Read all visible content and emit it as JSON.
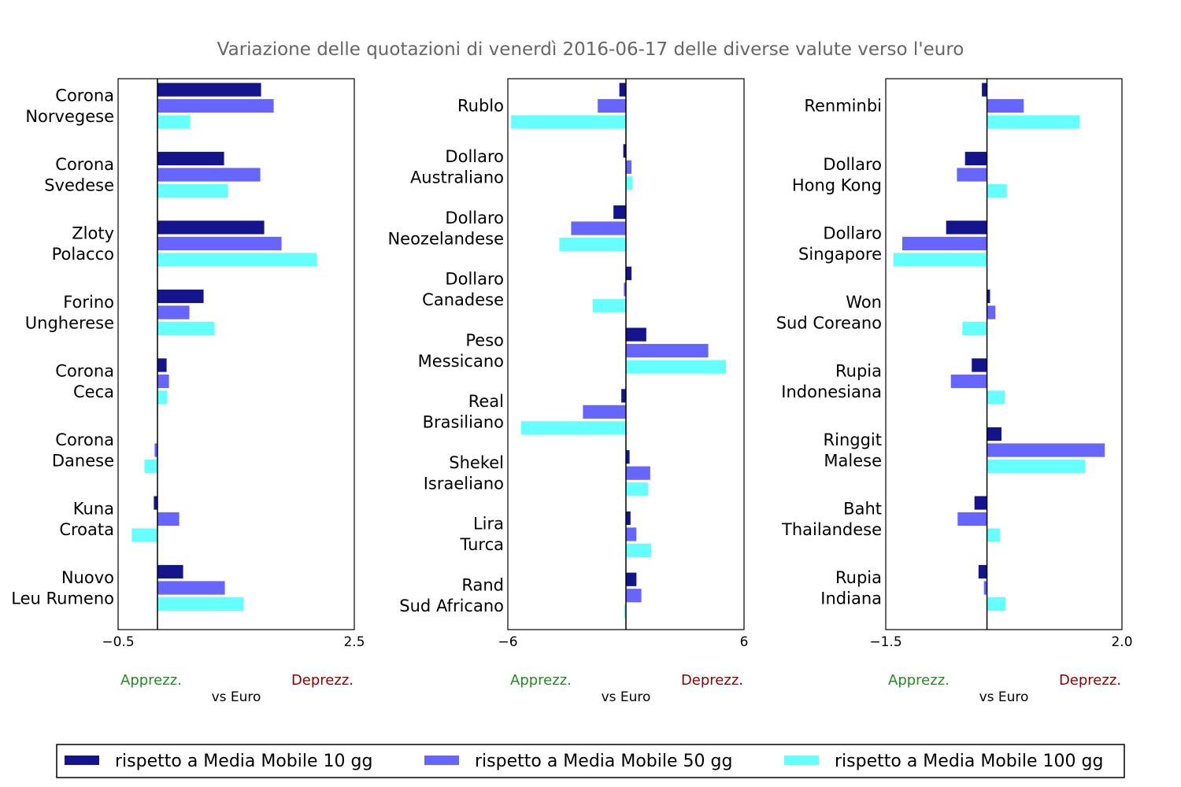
{
  "chart_data": {
    "type": "bar",
    "orientation": "horizontal",
    "title": "Variazione delle quotazioni di venerdì 2016-06-17 delle diverse valute verso l'euro",
    "xlabel": "vs Euro",
    "apprezz_label": "Apprezz.",
    "deprezz_label": "Deprezz.",
    "series": [
      {
        "name": "rispetto a Media Mobile 10 gg",
        "color": "#14148c"
      },
      {
        "name": "rispetto a Media Mobile 50 gg",
        "color": "#6666ff"
      },
      {
        "name": "rispetto a Media Mobile 100 gg",
        "color": "#66ffff"
      }
    ],
    "legend_position": "bottom",
    "panels": [
      {
        "xlim": [
          -0.5,
          2.5
        ],
        "xtick_labels": [
          "−0.5",
          "2.5"
        ],
        "categories": [
          {
            "lines": [
              "Corona",
              "Norvegese"
            ],
            "values": [
              1.32,
              1.48,
              0.42
            ]
          },
          {
            "lines": [
              "Corona",
              "Svedese"
            ],
            "values": [
              0.85,
              1.31,
              0.9
            ]
          },
          {
            "lines": [
              "Zloty",
              "Polacco"
            ],
            "values": [
              1.36,
              1.58,
              2.03
            ]
          },
          {
            "lines": [
              "Forino",
              "Ungherese"
            ],
            "values": [
              0.59,
              0.41,
              0.73
            ]
          },
          {
            "lines": [
              "Corona",
              "Ceca"
            ],
            "values": [
              0.12,
              0.15,
              0.13
            ]
          },
          {
            "lines": [
              "Corona",
              "Danese"
            ],
            "values": [
              0.0,
              -0.04,
              -0.17
            ]
          },
          {
            "lines": [
              "Kuna",
              "Croata"
            ],
            "values": [
              -0.05,
              0.28,
              -0.33
            ]
          },
          {
            "lines": [
              "Nuovo",
              "Leu Rumeno"
            ],
            "values": [
              0.33,
              0.86,
              1.1
            ]
          }
        ]
      },
      {
        "xlim": [
          -6,
          6
        ],
        "xtick_labels": [
          "−6",
          "6"
        ],
        "categories": [
          {
            "lines": [
              "Rublo"
            ],
            "values": [
              -0.35,
              -1.45,
              -5.85
            ]
          },
          {
            "lines": [
              "Dollaro",
              "Australiano"
            ],
            "values": [
              -0.15,
              0.3,
              0.35
            ]
          },
          {
            "lines": [
              "Dollaro",
              "Neozelandese"
            ],
            "values": [
              -0.65,
              -2.8,
              -3.4
            ]
          },
          {
            "lines": [
              "Dollaro",
              "Canadese"
            ],
            "values": [
              0.3,
              -0.12,
              -1.7
            ]
          },
          {
            "lines": [
              "Peso",
              "Messicano"
            ],
            "values": [
              1.05,
              4.2,
              5.1
            ]
          },
          {
            "lines": [
              "Real",
              "Brasiliano"
            ],
            "values": [
              -0.25,
              -2.2,
              -5.35
            ]
          },
          {
            "lines": [
              "Shekel",
              "Israeliano"
            ],
            "values": [
              0.2,
              1.25,
              1.15
            ]
          },
          {
            "lines": [
              "Lira",
              "Turca"
            ],
            "values": [
              0.25,
              0.55,
              1.3
            ]
          },
          {
            "lines": [
              "Rand",
              "Sud Africano"
            ],
            "values": [
              0.55,
              0.8,
              -0.1
            ]
          }
        ]
      },
      {
        "xlim": [
          -1.5,
          2.0
        ],
        "xtick_labels": [
          "−1.5",
          "2.0"
        ],
        "categories": [
          {
            "lines": [
              "Renminbi"
            ],
            "values": [
              -0.08,
              0.55,
              1.38
            ]
          },
          {
            "lines": [
              "Dollaro",
              "Hong Kong"
            ],
            "values": [
              -0.33,
              -0.45,
              0.3
            ]
          },
          {
            "lines": [
              "Dollaro",
              "Singapore"
            ],
            "values": [
              -0.61,
              -1.26,
              -1.39
            ]
          },
          {
            "lines": [
              "Won",
              "Sud Coreano"
            ],
            "values": [
              0.05,
              0.13,
              -0.37
            ]
          },
          {
            "lines": [
              "Rupia",
              "Indonesiana"
            ],
            "values": [
              -0.23,
              -0.54,
              0.27
            ]
          },
          {
            "lines": [
              "Ringgit",
              "Malese"
            ],
            "values": [
              0.22,
              1.75,
              1.46
            ]
          },
          {
            "lines": [
              "Baht",
              "Thailandese"
            ],
            "values": [
              -0.19,
              -0.44,
              0.2
            ]
          },
          {
            "lines": [
              "Rupia",
              "Indiana"
            ],
            "values": [
              -0.13,
              -0.05,
              0.28
            ]
          }
        ]
      }
    ]
  }
}
